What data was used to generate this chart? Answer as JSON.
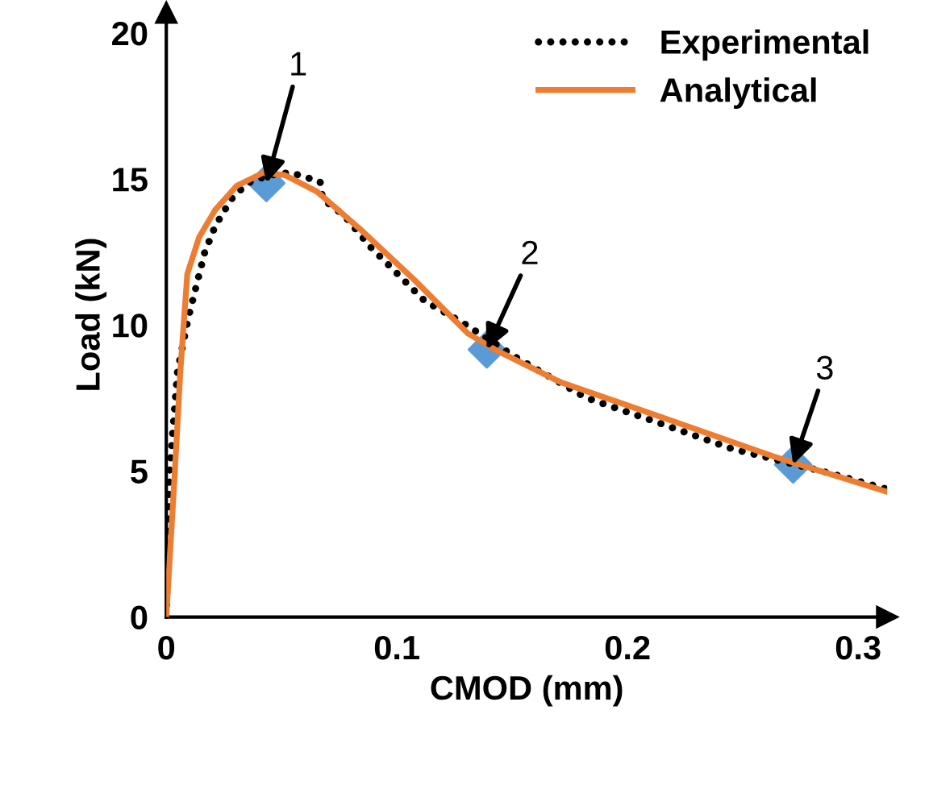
{
  "chart_data": {
    "type": "line",
    "xlabel": "CMOD (mm)",
    "ylabel": "Load (kN)",
    "xlim": [
      0,
      0.3126
    ],
    "ylim": [
      0,
      20.7
    ],
    "xticks": [
      0,
      0.1,
      0.2,
      0.3
    ],
    "yticks": [
      0,
      5,
      10,
      15,
      20
    ],
    "grid": false,
    "legend": "top right",
    "series": [
      {
        "name": "Experimental",
        "color": "#000000",
        "line_style": "dotted",
        "x": [
          0,
          0.0014,
          0.0049,
          0.0096,
          0.0131,
          0.0166,
          0.0212,
          0.0282,
          0.0352,
          0.0445,
          0.0538,
          0.0667,
          0.0678,
          0.0771,
          0.0888,
          0.0981,
          0.1121,
          0.1285,
          0.1517,
          0.182,
          0.2124,
          0.245,
          0.2869,
          0.312
        ],
        "values": [
          0,
          4.94,
          8.43,
          10.26,
          11.37,
          12.47,
          13.39,
          14.31,
          14.86,
          15.13,
          15.22,
          14.91,
          14.31,
          13.75,
          12.65,
          11.92,
          10.82,
          10.08,
          8.89,
          7.51,
          6.68,
          5.77,
          4.94,
          4.39
        ]
      },
      {
        "name": "Analytical",
        "color": "#ed7d31",
        "line_style": "solid",
        "x": [
          0,
          0.0037,
          0.0061,
          0.0091,
          0.0142,
          0.0212,
          0.0306,
          0.0422,
          0.0515,
          0.0655,
          0.0841,
          0.1075,
          0.1308,
          0.1425,
          0.1704,
          0.217,
          0.2636,
          0.312
        ],
        "values": [
          0,
          4.96,
          8.43,
          11.74,
          13.0,
          13.94,
          14.77,
          15.22,
          15.13,
          14.56,
          13.28,
          11.55,
          9.71,
          9.16,
          8.06,
          6.78,
          5.49,
          4.3
        ]
      },
      {
        "type": "scatter",
        "marker": "diamond",
        "color": "#5b9bd5",
        "x": [
          0.0434,
          0.139,
          0.2718
        ],
        "values": [
          14.86,
          9.16,
          5.22
        ]
      }
    ],
    "annotations": [
      {
        "text": "1",
        "x": 0.0434,
        "y": 14.86
      },
      {
        "text": "2",
        "x": 0.139,
        "y": 9.16
      },
      {
        "text": "3",
        "x": 0.2718,
        "y": 5.22
      }
    ]
  }
}
